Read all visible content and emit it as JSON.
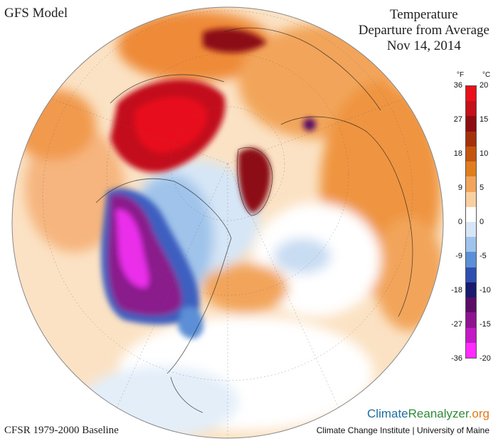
{
  "header": {
    "model_label": "GFS Model",
    "title_line1": "Temperature",
    "title_line2": "Departure from Average",
    "date": "Nov 14, 2014"
  },
  "legend": {
    "unit_f": "°F",
    "unit_c": "°C",
    "ticks_f": [
      "36",
      "27",
      "18",
      "9",
      "0",
      "-9",
      "-18",
      "-27",
      "-36"
    ],
    "ticks_c": [
      "20",
      "15",
      "10",
      "5",
      "0",
      "-5",
      "-10",
      "-15",
      "-20"
    ],
    "colors": [
      "#e8101a",
      "#c3101a",
      "#8d0d12",
      "#a3320c",
      "#c45510",
      "#e07d1e",
      "#f2a55a",
      "#f9cfa0",
      "#ffffff",
      "#d6e6f6",
      "#9fc3ea",
      "#5b8fd6",
      "#2f4fb0",
      "#191a6e",
      "#5a0d63",
      "#8e1390",
      "#c21bc6",
      "#ff2bff"
    ]
  },
  "footer": {
    "baseline": "CFSR 1979-2000 Baseline",
    "brand_climate": "Climate",
    "brand_reanalyzer": "Reanalyzer",
    "brand_org": ".org",
    "institute": "Climate Change Institute | University of Maine"
  },
  "map": {
    "projection": "polar-orthographic",
    "colors": {
      "warm_light": "#f9cfa0",
      "warm": "#ef9440",
      "warm_dark": "#c45510",
      "hot": "#b3100f",
      "hot_red": "#e01818",
      "cool_light": "#d6e6f6",
      "cool": "#8fb4e4",
      "cold": "#3c5ec0",
      "very_cold": "#8a1a8c",
      "extreme_cold": "#ea2eea"
    }
  }
}
